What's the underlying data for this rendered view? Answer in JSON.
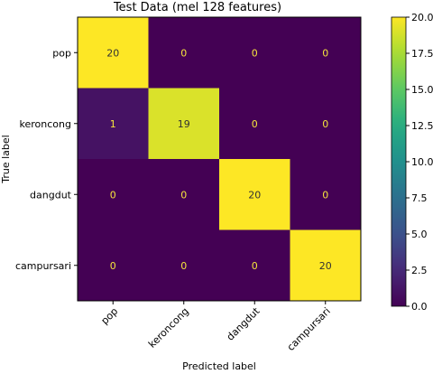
{
  "chart_data": {
    "type": "heatmap",
    "title": "Test Data (mel 128 features)",
    "xlabel": "Predicted label",
    "ylabel": "True label",
    "x_categories": [
      "pop",
      "keroncong",
      "dangdut",
      "campursari"
    ],
    "y_categories": [
      "pop",
      "keroncong",
      "dangdut",
      "campursari"
    ],
    "matrix": [
      [
        20,
        0,
        0,
        0
      ],
      [
        1,
        19,
        0,
        0
      ],
      [
        0,
        0,
        20,
        0
      ],
      [
        0,
        0,
        0,
        20
      ]
    ],
    "colorbar": {
      "ticks": [
        "0.0",
        "2.5",
        "5.0",
        "7.5",
        "10.0",
        "12.5",
        "15.0",
        "17.5",
        "20.0"
      ],
      "range": [
        0,
        20
      ],
      "colormap": "viridis"
    },
    "colors": {
      "low": "#440154",
      "high": "#fde725"
    }
  }
}
